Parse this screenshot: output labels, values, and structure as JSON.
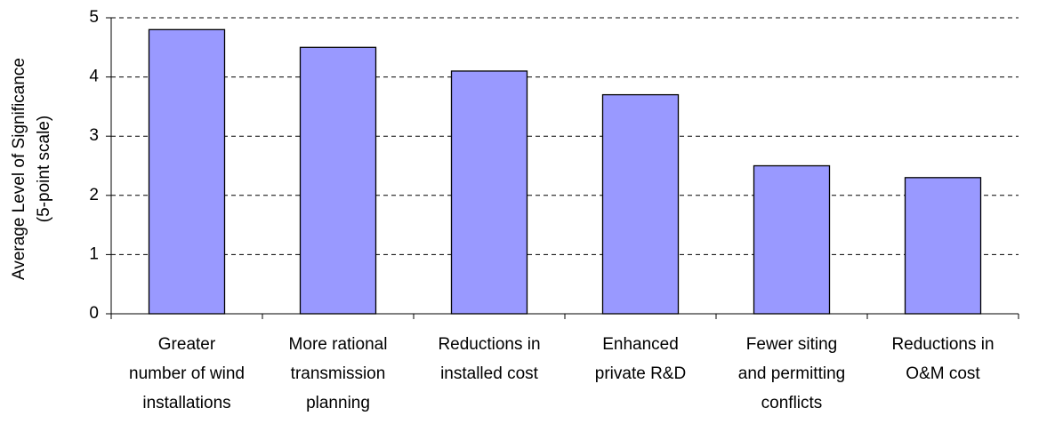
{
  "chart_data": {
    "type": "bar",
    "y_label": "Average Level of Significance (5-point scale)",
    "categories": [
      "Greater number of wind installations",
      "More rational transmission planning",
      "Reductions in installed cost",
      "Enhanced private R&D",
      "Fewer siting and permitting conflicts",
      "Reductions in O&M cost"
    ],
    "values": [
      4.8,
      4.5,
      4.1,
      3.7,
      2.5,
      2.3
    ],
    "color": "#9999ff",
    "ylim": [
      0,
      5
    ],
    "yticks": [
      0,
      1,
      2,
      3,
      4,
      5
    ],
    "grid": true
  }
}
